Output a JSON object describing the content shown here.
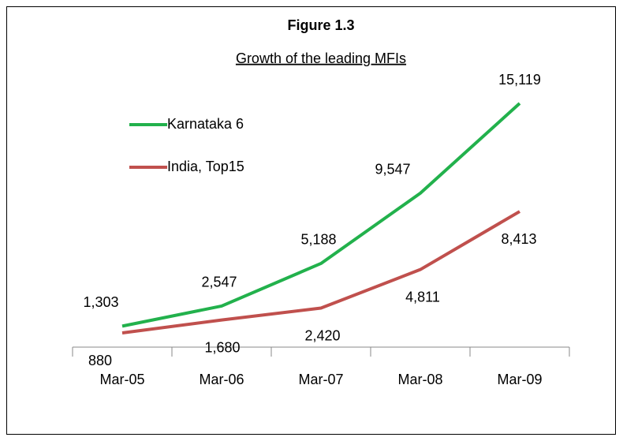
{
  "chart_data": {
    "type": "line",
    "title": "Figure 1.3",
    "subtitle": "Growth of the leading MFIs",
    "categories": [
      "Mar-05",
      "Mar-06",
      "Mar-07",
      "Mar-08",
      "Mar-09"
    ],
    "series": [
      {
        "name": "Karnataka 6",
        "color": "#22b14c",
        "values": [
          1303,
          2547,
          5188,
          9547,
          15119
        ],
        "value_labels": [
          "1,303",
          "2,547",
          "5,188",
          "9,547",
          "15,119"
        ]
      },
      {
        "name": "India, Top15",
        "color": "#c0504d",
        "values": [
          880,
          1680,
          2420,
          4811,
          8413
        ],
        "value_labels": [
          "880",
          "1,680",
          "2,420",
          "4,811",
          "8,413"
        ]
      }
    ],
    "ylim": [
      0,
      16000
    ],
    "legend": "upper left"
  }
}
